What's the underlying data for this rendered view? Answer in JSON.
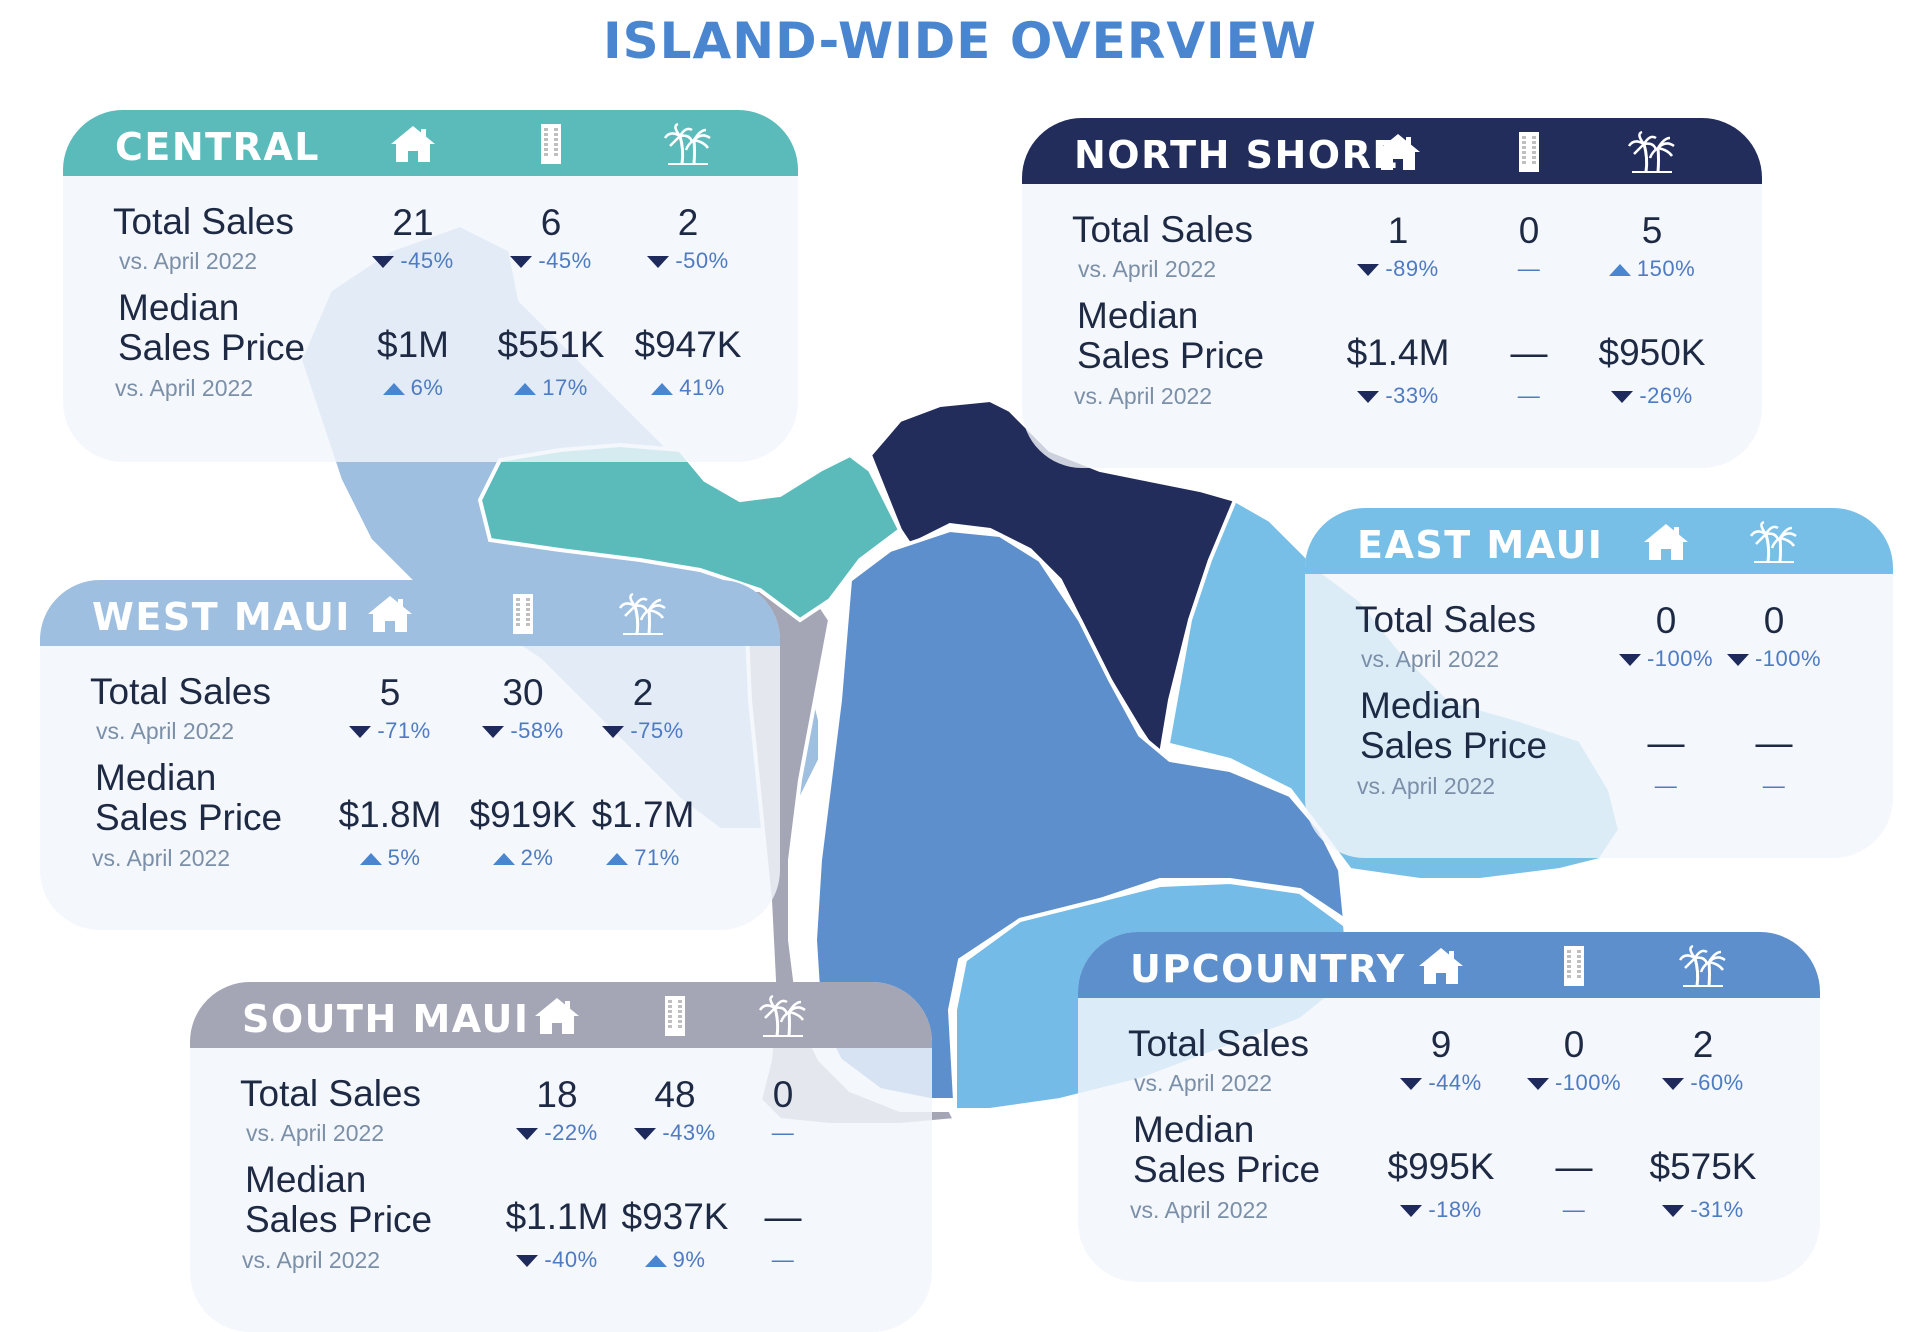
{
  "title": "ISLAND-WIDE OVERVIEW",
  "colors": {
    "title": "#4a86d0",
    "central": "#5bbbbb",
    "north_shore": "#232d5c",
    "east_maui": "#78bfe8",
    "west_maui": "#9fbfe0",
    "south_maui": "#a4a6b6",
    "upcountry": "#5d8fcc",
    "upcountry_south": "#74bbe8"
  },
  "icons": [
    "single-family-home-icon",
    "condo-building-icon",
    "land-palm-tree-icon"
  ],
  "regions": {
    "central": {
      "name": "CENTRAL",
      "total_sales_label": "Total Sales",
      "vs_label": "vs. April 2022",
      "median_label_1": "Median",
      "median_label_2": "Sales Price",
      "median_vs_label": "vs. April 2022",
      "columns": [
        {
          "icon": "single-family-home-icon",
          "sales": "21",
          "sales_dir": "down",
          "sales_chg": "-45%",
          "price": "$1M",
          "price_dir": "up",
          "price_chg": "6%"
        },
        {
          "icon": "condo-building-icon",
          "sales": "6",
          "sales_dir": "down",
          "sales_chg": "-45%",
          "price": "$551K",
          "price_dir": "up",
          "price_chg": "17%"
        },
        {
          "icon": "land-palm-tree-icon",
          "sales": "2",
          "sales_dir": "down",
          "sales_chg": "-50%",
          "price": "$947K",
          "price_dir": "up",
          "price_chg": "41%"
        }
      ]
    },
    "north_shore": {
      "name": "NORTH SHORE",
      "total_sales_label": "Total Sales",
      "vs_label": "vs. April 2022",
      "median_label_1": "Median",
      "median_label_2": "Sales Price",
      "median_vs_label": "vs. April 2022",
      "columns": [
        {
          "icon": "single-family-home-icon",
          "sales": "1",
          "sales_dir": "down",
          "sales_chg": "-89%",
          "price": "$1.4M",
          "price_dir": "down",
          "price_chg": "-33%"
        },
        {
          "icon": "condo-building-icon",
          "sales": "0",
          "sales_dir": "none",
          "sales_chg": "—",
          "price": "—",
          "price_dir": "none",
          "price_chg": "—"
        },
        {
          "icon": "land-palm-tree-icon",
          "sales": "5",
          "sales_dir": "up",
          "sales_chg": "150%",
          "price": "$950K",
          "price_dir": "down",
          "price_chg": "-26%"
        }
      ]
    },
    "east_maui": {
      "name": "EAST MAUI",
      "total_sales_label": "Total Sales",
      "vs_label": "vs. April 2022",
      "median_label_1": "Median",
      "median_label_2": "Sales Price",
      "median_vs_label": "vs. April 2022",
      "columns": [
        {
          "icon": "single-family-home-icon",
          "sales": "0",
          "sales_dir": "down",
          "sales_chg": "-100%",
          "price": "—",
          "price_dir": "none",
          "price_chg": "—"
        },
        {
          "icon": "land-palm-tree-icon",
          "sales": "0",
          "sales_dir": "down",
          "sales_chg": "-100%",
          "price": "—",
          "price_dir": "none",
          "price_chg": "—"
        }
      ]
    },
    "west_maui": {
      "name": "WEST MAUI",
      "total_sales_label": "Total Sales",
      "vs_label": "vs. April 2022",
      "median_label_1": "Median",
      "median_label_2": "Sales Price",
      "median_vs_label": "vs. April 2022",
      "columns": [
        {
          "icon": "single-family-home-icon",
          "sales": "5",
          "sales_dir": "down",
          "sales_chg": "-71%",
          "price": "$1.8M",
          "price_dir": "up",
          "price_chg": "5%"
        },
        {
          "icon": "condo-building-icon",
          "sales": "30",
          "sales_dir": "down",
          "sales_chg": "-58%",
          "price": "$919K",
          "price_dir": "up",
          "price_chg": "2%"
        },
        {
          "icon": "land-palm-tree-icon",
          "sales": "2",
          "sales_dir": "down",
          "sales_chg": "-75%",
          "price": "$1.7M",
          "price_dir": "up",
          "price_chg": "71%"
        }
      ]
    },
    "south_maui": {
      "name": "SOUTH MAUI",
      "total_sales_label": "Total Sales",
      "vs_label": "vs. April 2022",
      "median_label_1": "Median",
      "median_label_2": "Sales Price",
      "median_vs_label": "vs. April 2022",
      "columns": [
        {
          "icon": "single-family-home-icon",
          "sales": "18",
          "sales_dir": "down",
          "sales_chg": "-22%",
          "price": "$1.1M",
          "price_dir": "down",
          "price_chg": "-40%"
        },
        {
          "icon": "condo-building-icon",
          "sales": "48",
          "sales_dir": "down",
          "sales_chg": "-43%",
          "price": "$937K",
          "price_dir": "up",
          "price_chg": "9%"
        },
        {
          "icon": "land-palm-tree-icon",
          "sales": "0",
          "sales_dir": "none",
          "sales_chg": "—",
          "price": "—",
          "price_dir": "none",
          "price_chg": "—"
        }
      ]
    },
    "upcountry": {
      "name": "UPCOUNTRY",
      "total_sales_label": "Total Sales",
      "vs_label": "vs. April 2022",
      "median_label_1": "Median",
      "median_label_2": "Sales Price",
      "median_vs_label": "vs. April 2022",
      "columns": [
        {
          "icon": "single-family-home-icon",
          "sales": "9",
          "sales_dir": "down",
          "sales_chg": "-44%",
          "price": "$995K",
          "price_dir": "down",
          "price_chg": "-18%"
        },
        {
          "icon": "condo-building-icon",
          "sales": "0",
          "sales_dir": "down",
          "sales_chg": "-100%",
          "price": "—",
          "price_dir": "none",
          "price_chg": "—"
        },
        {
          "icon": "land-palm-tree-icon",
          "sales": "2",
          "sales_dir": "down",
          "sales_chg": "-60%",
          "price": "$575K",
          "price_dir": "down",
          "price_chg": "-31%"
        }
      ]
    }
  }
}
